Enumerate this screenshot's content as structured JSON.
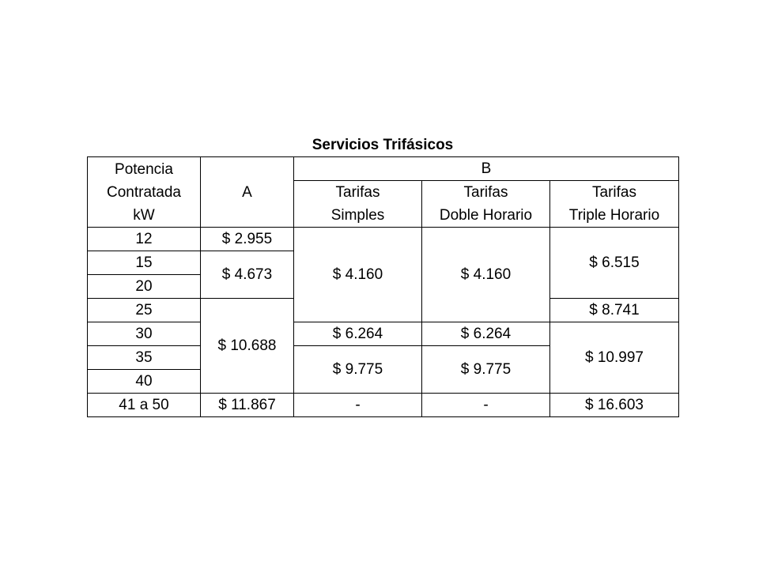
{
  "title": "Servicios Trifásicos",
  "header": {
    "potencia_lines": [
      "Potencia",
      "Contratada",
      "kW"
    ],
    "col_a": "A",
    "col_b": "B",
    "sub": {
      "simples": [
        "Tarifas",
        "Simples"
      ],
      "doble": [
        "Tarifas",
        "Doble Horario"
      ],
      "triple": [
        "Tarifas",
        "Triple Horario"
      ]
    }
  },
  "rows": {
    "p12": "12",
    "p15": "15",
    "p20": "20",
    "p25": "25",
    "p30": "30",
    "p35": "35",
    "p40": "40",
    "p41_50": "41 a 50"
  },
  "values": {
    "a_12": "$ 2.955",
    "a_15_20": "$ 4.673",
    "a_25_40": "$ 10.688",
    "a_41_50": "$ 11.867",
    "simples_12_25": "$ 4.160",
    "simples_30": "$ 6.264",
    "simples_35_40": "$ 9.775",
    "simples_41_50": "-",
    "doble_12_25": "$ 4.160",
    "doble_30": "$ 6.264",
    "doble_35_40": "$ 9.775",
    "doble_41_50": "-",
    "triple_12_20": "$ 6.515",
    "triple_25": "$ 8.741",
    "triple_30_40": "$ 10.997",
    "triple_41_50": "$ 16.603"
  }
}
